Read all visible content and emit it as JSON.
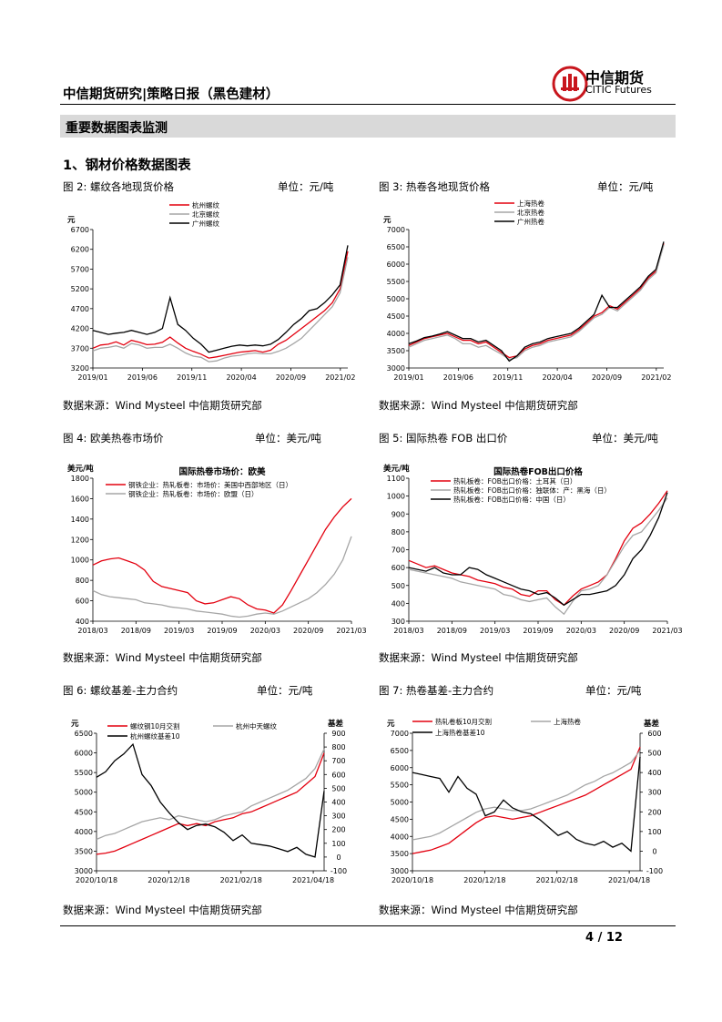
{
  "header": {
    "title": "中信期货研究|策略日报（黑色建材）",
    "logo_cn": "中信期货",
    "logo_en": "CITIC Futures"
  },
  "section_band": "重要数据图表监测",
  "section_title": "1、钢材价格数据图表",
  "source_text": "数据来源：Wind Mysteel 中信期货研究部",
  "page_number": "4 / 12",
  "colors": {
    "red": "#e3000f",
    "gray": "#a6a6a6",
    "black": "#000000"
  },
  "figures": [
    {
      "caption": "图 2:  螺纹各地现货价格",
      "unit": "单位：元/吨"
    },
    {
      "caption": "图 3:  热卷各地现货价格",
      "unit": "单位：元/吨"
    },
    {
      "caption": "图 4:  欧美热卷市场价",
      "unit": "单位：美元/吨"
    },
    {
      "caption": "图 5:  国际热卷 FOB 出口价",
      "unit": "单位：美元/吨"
    },
    {
      "caption": "图 6:     螺纹基差-主力合约",
      "unit": "单位：元/吨"
    },
    {
      "caption": "图 7:  热卷基差-主力合约",
      "unit": "单位：元/吨"
    }
  ],
  "chart_data": [
    {
      "type": "line",
      "title": "",
      "ylabel_top": "元",
      "ylim": [
        3200,
        6700
      ],
      "yticks": [
        3200,
        3700,
        4200,
        4700,
        5200,
        5700,
        6200,
        6700
      ],
      "xlabels": [
        "2019/01",
        "2019/06",
        "2019/11",
        "2020/04",
        "2020/09",
        "2021/02"
      ],
      "legend": "top-center",
      "series": [
        {
          "name": "杭州螺纹",
          "color": "red",
          "values": [
            3700,
            3780,
            3800,
            3860,
            3780,
            3900,
            3850,
            3790,
            3800,
            3850,
            3980,
            3830,
            3700,
            3620,
            3550,
            3450,
            3480,
            3520,
            3560,
            3600,
            3620,
            3640,
            3600,
            3650,
            3800,
            3900,
            4050,
            4200,
            4350,
            4500,
            4650,
            4850,
            5200,
            6150
          ]
        },
        {
          "name": "北京螺纹",
          "color": "gray",
          "values": [
            3630,
            3700,
            3720,
            3760,
            3700,
            3820,
            3780,
            3700,
            3720,
            3720,
            3800,
            3700,
            3580,
            3500,
            3470,
            3360,
            3380,
            3450,
            3500,
            3520,
            3560,
            3580,
            3560,
            3560,
            3620,
            3700,
            3820,
            3950,
            4150,
            4350,
            4550,
            4750,
            5100,
            6000
          ]
        },
        {
          "name": "广州螺纹",
          "color": "black",
          "values": [
            4150,
            4100,
            4050,
            4080,
            4100,
            4150,
            4100,
            4050,
            4100,
            4200,
            4980,
            4300,
            4150,
            3950,
            3800,
            3600,
            3650,
            3700,
            3750,
            3780,
            3760,
            3780,
            3760,
            3800,
            3920,
            4100,
            4300,
            4450,
            4650,
            4700,
            4850,
            5050,
            5300,
            6300
          ]
        }
      ]
    },
    {
      "type": "line",
      "title": "",
      "ylabel_top": "元",
      "ylim": [
        3000,
        7000
      ],
      "yticks": [
        3000,
        3500,
        4000,
        4500,
        5000,
        5500,
        6000,
        6500,
        7000
      ],
      "xlabels": [
        "2019/01",
        "2019/06",
        "2019/11",
        "2020/04",
        "2020/09",
        "2021/02"
      ],
      "legend": "top-center",
      "series": [
        {
          "name": "上海热卷",
          "color": "red",
          "values": [
            3650,
            3750,
            3850,
            3900,
            3950,
            4000,
            3900,
            3800,
            3800,
            3700,
            3750,
            3600,
            3450,
            3300,
            3350,
            3550,
            3650,
            3700,
            3800,
            3850,
            3900,
            3950,
            4100,
            4300,
            4500,
            4600,
            4800,
            4700,
            4900,
            5100,
            5300,
            5600,
            5800,
            6600
          ]
        },
        {
          "name": "北京热卷",
          "color": "gray",
          "values": [
            3600,
            3700,
            3800,
            3850,
            3900,
            3950,
            3850,
            3700,
            3700,
            3600,
            3650,
            3520,
            3400,
            3250,
            3300,
            3500,
            3600,
            3650,
            3750,
            3800,
            3850,
            3900,
            4050,
            4250,
            4450,
            4550,
            4750,
            4650,
            4850,
            5050,
            5250,
            5550,
            5750,
            6550
          ]
        },
        {
          "name": "广州热卷",
          "color": "black",
          "values": [
            3700,
            3780,
            3880,
            3920,
            3980,
            4050,
            3950,
            3850,
            3850,
            3750,
            3800,
            3650,
            3500,
            3200,
            3350,
            3600,
            3700,
            3750,
            3850,
            3900,
            3950,
            4000,
            4150,
            4350,
            4550,
            5100,
            4750,
            4750,
            4950,
            5150,
            5350,
            5650,
            5850,
            6650
          ]
        }
      ]
    },
    {
      "type": "line",
      "title": "国际热卷市场价：欧美",
      "ylabel_top": "美元/吨",
      "ylim": [
        400,
        1800
      ],
      "yticks": [
        400,
        600,
        800,
        1000,
        1200,
        1400,
        1600,
        1800
      ],
      "xlabels": [
        "2018/03",
        "2018/09",
        "2019/03",
        "2019/09",
        "2020/03",
        "2020/09",
        "2021/03"
      ],
      "legend": "top-left",
      "series": [
        {
          "name": "钢铁企业：热轧板卷：市场价：美国中西部地区（日）",
          "color": "red",
          "values": [
            950,
            990,
            1010,
            1020,
            990,
            960,
            900,
            790,
            740,
            720,
            700,
            680,
            600,
            570,
            580,
            610,
            640,
            620,
            560,
            520,
            510,
            480,
            560,
            700,
            850,
            1000,
            1150,
            1300,
            1420,
            1520,
            1600
          ]
        },
        {
          "name": "钢铁企业：热轧板卷：市场价：欧盟（日）",
          "color": "gray",
          "values": [
            700,
            660,
            640,
            630,
            620,
            610,
            580,
            570,
            560,
            540,
            530,
            520,
            500,
            490,
            480,
            470,
            450,
            440,
            450,
            470,
            480,
            470,
            500,
            540,
            580,
            620,
            680,
            760,
            860,
            1000,
            1230
          ]
        }
      ]
    },
    {
      "type": "line",
      "title": "国际热卷FOB出口价格",
      "ylabel_top": "美元/吨",
      "ylim": [
        300,
        1100
      ],
      "yticks": [
        300,
        400,
        500,
        600,
        700,
        800,
        900,
        1000,
        1100
      ],
      "xlabels": [
        "2018/03",
        "2018/09",
        "2019/03",
        "2019/09",
        "2020/03",
        "2020/09",
        "2021/03"
      ],
      "legend": "top-center",
      "series": [
        {
          "name": "热轧板卷：FOB出口价格：土耳其（日）",
          "color": "red",
          "values": [
            640,
            620,
            600,
            610,
            590,
            570,
            560,
            550,
            530,
            520,
            510,
            490,
            480,
            450,
            440,
            470,
            470,
            420,
            390,
            440,
            480,
            500,
            520,
            560,
            650,
            750,
            820,
            850,
            900,
            960,
            1030
          ]
        },
        {
          "name": "热轧板卷：FOB出口价格：独联体：产：黑海（日）",
          "color": "gray",
          "values": [
            590,
            580,
            570,
            560,
            550,
            540,
            520,
            510,
            500,
            490,
            480,
            450,
            440,
            420,
            410,
            420,
            430,
            380,
            340,
            410,
            470,
            480,
            500,
            560,
            640,
            720,
            780,
            800,
            860,
            920,
            990
          ]
        },
        {
          "name": "热轧板卷：FOB出口价格：中国（日）",
          "color": "black",
          "values": [
            600,
            590,
            580,
            600,
            570,
            560,
            560,
            600,
            590,
            560,
            540,
            520,
            500,
            480,
            470,
            450,
            460,
            430,
            390,
            420,
            450,
            450,
            460,
            470,
            500,
            560,
            650,
            700,
            780,
            880,
            1020
          ]
        }
      ]
    },
    {
      "type": "line",
      "title": "",
      "ylabel_left": "元",
      "ylabel_right": "基差",
      "ylim": [
        3000,
        6500
      ],
      "yticks": [
        3000,
        3500,
        4000,
        4500,
        5000,
        5500,
        6000,
        6500
      ],
      "y2lim": [
        -100,
        900
      ],
      "y2ticks": [
        -100,
        0,
        100,
        200,
        300,
        400,
        500,
        600,
        700,
        800,
        900
      ],
      "xlabels": [
        "2020/10/18",
        "2020/12/18",
        "2021/02/18",
        "2021/04/18"
      ],
      "legend": "top",
      "series": [
        {
          "name": "螺纹钢10月交割",
          "color": "red",
          "axis": "left",
          "values": [
            3420,
            3450,
            3500,
            3600,
            3700,
            3800,
            3900,
            4000,
            4100,
            4200,
            4150,
            4200,
            4150,
            4250,
            4300,
            4350,
            4450,
            4500,
            4600,
            4700,
            4800,
            4900,
            5000,
            5200,
            5400,
            6000
          ]
        },
        {
          "name": "杭州中天螺纹",
          "color": "gray",
          "axis": "left",
          "values": [
            3800,
            3900,
            3950,
            4050,
            4150,
            4250,
            4300,
            4350,
            4300,
            4400,
            4350,
            4300,
            4250,
            4300,
            4400,
            4450,
            4500,
            4650,
            4750,
            4850,
            4950,
            5050,
            5200,
            5350,
            5600,
            6100
          ]
        },
        {
          "name": "杭州螺纹基差10",
          "color": "black",
          "axis": "right",
          "values": [
            580,
            620,
            700,
            750,
            820,
            600,
            520,
            400,
            320,
            250,
            200,
            230,
            240,
            220,
            180,
            120,
            160,
            100,
            90,
            80,
            60,
            40,
            70,
            20,
            0,
            480
          ]
        }
      ]
    },
    {
      "type": "line",
      "title": "",
      "ylabel_left": "元",
      "ylabel_right": "基差",
      "ylim": [
        3000,
        7000
      ],
      "yticks": [
        3000,
        3500,
        4000,
        4500,
        5000,
        5500,
        6000,
        6500,
        7000
      ],
      "y2lim": [
        -100,
        600
      ],
      "y2ticks": [
        -100,
        0,
        100,
        200,
        300,
        400,
        500,
        600
      ],
      "xlabels": [
        "2020/10/18",
        "2020/12/18",
        "2021/02/18",
        "2021/04/18"
      ],
      "legend": "top",
      "series": [
        {
          "name": "热轧卷板10月交割",
          "color": "red",
          "axis": "left",
          "values": [
            3500,
            3550,
            3600,
            3700,
            3800,
            4000,
            4200,
            4400,
            4550,
            4600,
            4550,
            4500,
            4550,
            4600,
            4700,
            4800,
            4900,
            5000,
            5100,
            5200,
            5350,
            5500,
            5650,
            5800,
            5950,
            6600
          ]
        },
        {
          "name": "上海热卷",
          "color": "gray",
          "axis": "left",
          "values": [
            3900,
            3950,
            4000,
            4100,
            4250,
            4400,
            4550,
            4700,
            4800,
            4850,
            4800,
            4750,
            4750,
            4800,
            4900,
            5000,
            5100,
            5200,
            5350,
            5500,
            5600,
            5750,
            5850,
            6000,
            6150,
            6500
          ]
        },
        {
          "name": "上海热卷基差10",
          "color": "black",
          "axis": "right",
          "values": [
            400,
            390,
            380,
            370,
            300,
            380,
            320,
            290,
            180,
            200,
            260,
            220,
            200,
            190,
            160,
            120,
            80,
            100,
            60,
            40,
            30,
            50,
            20,
            40,
            0,
            480
          ]
        }
      ]
    }
  ]
}
